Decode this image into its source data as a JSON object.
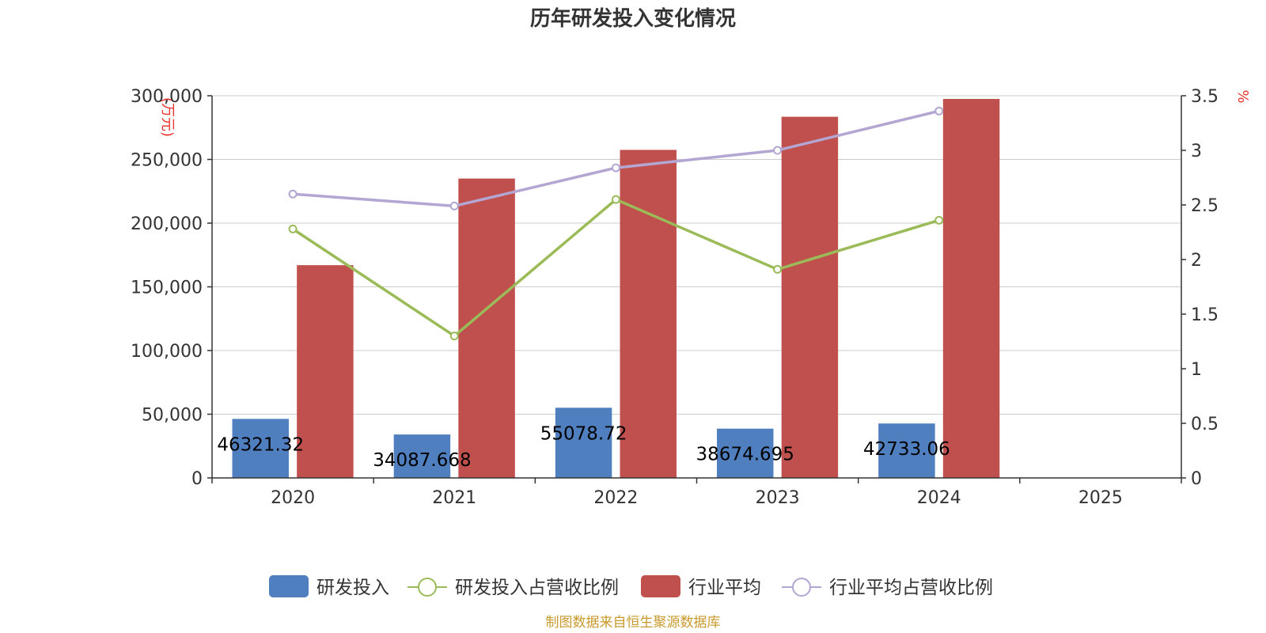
{
  "chart_data": {
    "type": "bar",
    "title": "历年研发投入变化情况",
    "categories": [
      "2020",
      "2021",
      "2022",
      "2023",
      "2024",
      "2025"
    ],
    "y_left": {
      "unit": "(万元)",
      "ylim": [
        0,
        300000
      ],
      "ticks": [
        "0",
        "50,000",
        "100,000",
        "150,000",
        "200,000",
        "250,000",
        "300,000"
      ]
    },
    "y_right": {
      "unit": "%",
      "ylim": [
        0,
        3.5
      ],
      "ticks": [
        "0",
        "0.5",
        "1",
        "1.5",
        "2",
        "2.5",
        "3",
        "3.5"
      ]
    },
    "grid": true,
    "legend_position": "bottom-center",
    "series": [
      {
        "name": "研发投入",
        "kind": "bar",
        "axis": "left",
        "color": "#4f7fbf",
        "values": [
          46321.32,
          34087.668,
          55078.72,
          38674.695,
          42733.06,
          null
        ],
        "labels": [
          "46321.32",
          "34087.668",
          "55078.72",
          "38674.695",
          "42733.06",
          ""
        ]
      },
      {
        "name": "研发投入占营收比例",
        "kind": "line",
        "axis": "right",
        "color": "#9bbb59",
        "values": [
          2.28,
          1.3,
          2.55,
          1.91,
          2.36,
          null
        ]
      },
      {
        "name": "行业平均",
        "kind": "bar",
        "axis": "left",
        "color": "#c0504d",
        "values": [
          167000,
          235000,
          257500,
          283500,
          297500,
          null
        ]
      },
      {
        "name": "行业平均占营收比例",
        "kind": "line",
        "axis": "right",
        "color": "#b3a6d2",
        "values": [
          2.6,
          2.49,
          2.84,
          3.0,
          3.36,
          null
        ]
      }
    ]
  },
  "source_text": "制图数据来自恒生聚源数据库"
}
